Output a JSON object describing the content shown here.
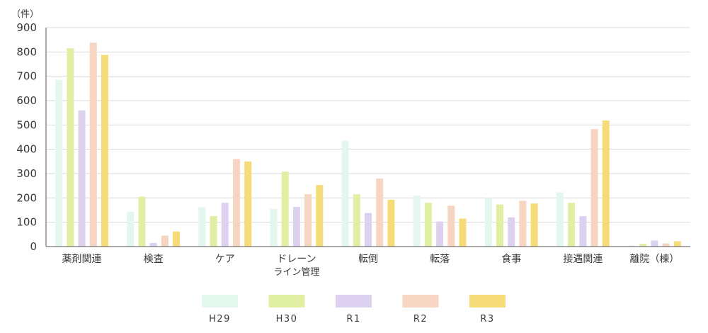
{
  "chart_data": {
    "type": "bar",
    "unit_label": "（件）",
    "ylim": [
      0,
      900
    ],
    "yticks": [
      0,
      100,
      200,
      300,
      400,
      500,
      600,
      700,
      800,
      900
    ],
    "grid": true,
    "legend_position": "bottom",
    "categories": [
      [
        "薬剤関連"
      ],
      [
        "検査"
      ],
      [
        "ケア"
      ],
      [
        "ドレーン",
        "ライン管理"
      ],
      [
        "転倒"
      ],
      [
        "転落"
      ],
      [
        "食事"
      ],
      [
        "接遇関連"
      ],
      [
        "離院（棟）"
      ]
    ],
    "series": [
      {
        "name": "H29",
        "color": "#e3f7ee",
        "values": [
          685,
          143,
          162,
          155,
          435,
          210,
          200,
          223,
          5
        ]
      },
      {
        "name": "H30",
        "color": "#e1efa3",
        "values": [
          815,
          205,
          125,
          308,
          215,
          180,
          173,
          180,
          12
        ]
      },
      {
        "name": "R1",
        "color": "#dcd2f0",
        "values": [
          560,
          15,
          180,
          163,
          138,
          103,
          120,
          125,
          25
        ]
      },
      {
        "name": "R2",
        "color": "#f6d5c3",
        "values": [
          838,
          45,
          360,
          215,
          280,
          168,
          188,
          483,
          13
        ]
      },
      {
        "name": "R3",
        "color": "#f6dc78",
        "values": [
          788,
          62,
          350,
          253,
          192,
          115,
          177,
          518,
          22
        ]
      }
    ]
  }
}
